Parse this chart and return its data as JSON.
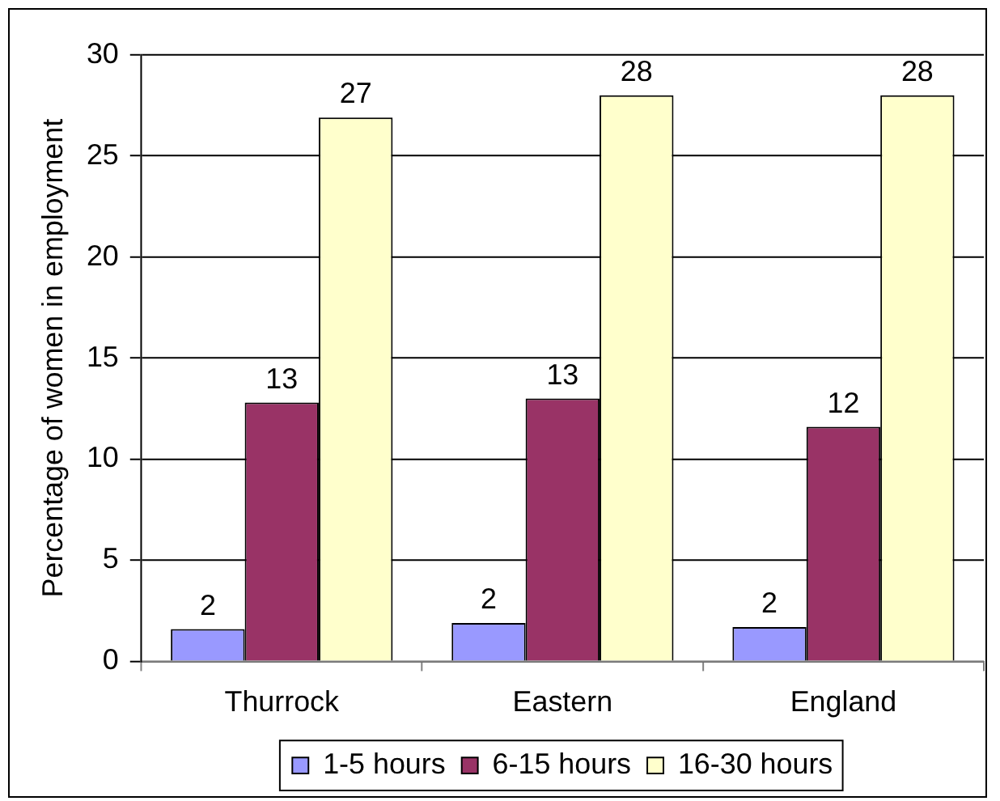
{
  "chart_data": {
    "type": "bar",
    "ylabel": "Percentage of women in employment",
    "categories": [
      "Thurrock",
      "Eastern",
      "England"
    ],
    "series": [
      {
        "name": "1-5 hours",
        "color": "#9999ff",
        "values": [
          1.6,
          1.9,
          1.7
        ],
        "value_labels": [
          "2",
          "2",
          "2"
        ]
      },
      {
        "name": "6-15 hours",
        "color": "#993366",
        "values": [
          12.8,
          13.0,
          11.6
        ],
        "value_labels": [
          "13",
          "13",
          "12"
        ]
      },
      {
        "name": "16-30 hours",
        "color": "#ffffcc",
        "values": [
          26.9,
          28.0,
          28.0
        ],
        "value_labels": [
          "27",
          "28",
          "28"
        ]
      }
    ],
    "ylim": [
      0,
      30
    ],
    "yticks": [
      0,
      5,
      10,
      15,
      20,
      25,
      30
    ],
    "grid": "y",
    "legend": "bottom"
  }
}
